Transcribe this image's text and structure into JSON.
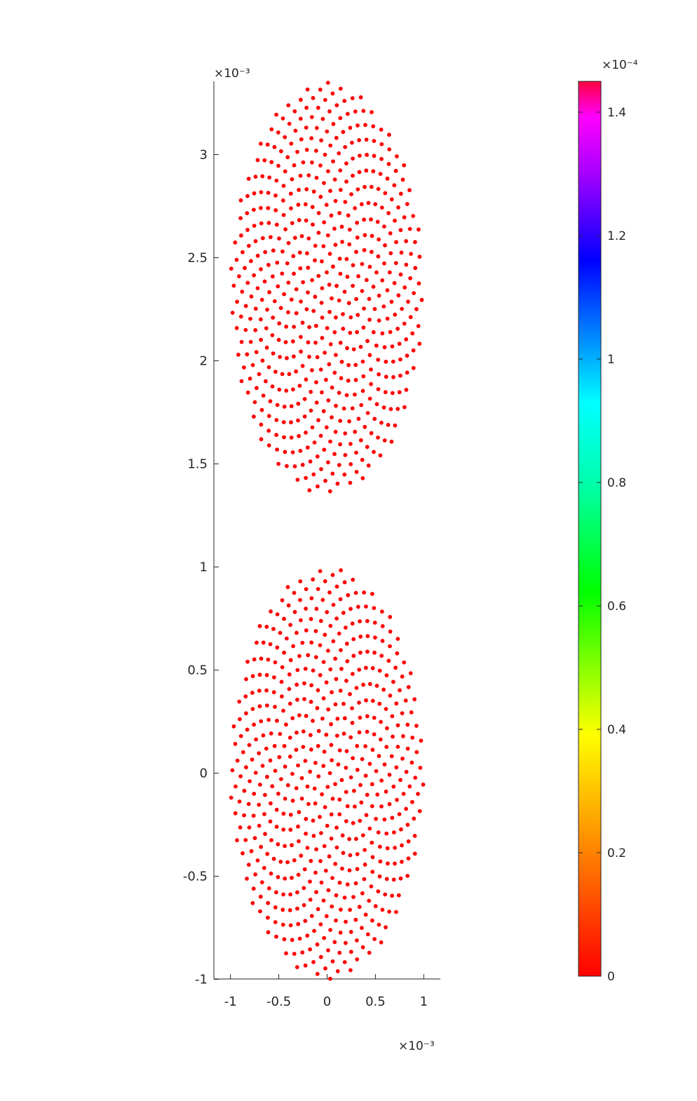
{
  "chart_data": {
    "type": "scatter",
    "title": "",
    "xlabel": "",
    "ylabel": "",
    "x_ticks": [
      -1,
      -0.5,
      0,
      0.5,
      1
    ],
    "x_tick_labels": [
      "-1",
      "-0.5",
      "0",
      "0.5",
      "1"
    ],
    "x_exponent": "×10⁻³",
    "y_ticks": [
      -1,
      -0.5,
      0,
      0.5,
      1,
      1.5,
      2,
      2.5,
      3
    ],
    "y_tick_labels": [
      "-1",
      "-0.5",
      "0",
      "0.5",
      "1",
      "1.5",
      "2",
      "2.5",
      "3"
    ],
    "y_exponent": "×10⁻³",
    "xlim": [
      -1.1,
      1.1
    ],
    "ylim": [
      -1,
      3.35
    ],
    "grid": false,
    "marker_color": "#ff0000",
    "series": [
      {
        "shape": "ellipse",
        "center": [
          0,
          0
        ],
        "semi_axes": [
          1,
          1
        ],
        "value": 0
      },
      {
        "shape": "ellipse",
        "center": [
          0,
          2.35
        ],
        "semi_axes": [
          1,
          1
        ],
        "value": 0
      }
    ],
    "colorbar": {
      "colormap": "hsv",
      "range": [
        0,
        1.45
      ],
      "ticks": [
        0,
        0.2,
        0.4,
        0.6,
        0.8,
        1,
        1.2,
        1.4
      ],
      "tick_labels": [
        "0",
        "0.2",
        "0.4",
        "0.6",
        "0.8",
        "1",
        "1.2",
        "1.4"
      ],
      "exponent": "×10⁻⁴"
    }
  }
}
